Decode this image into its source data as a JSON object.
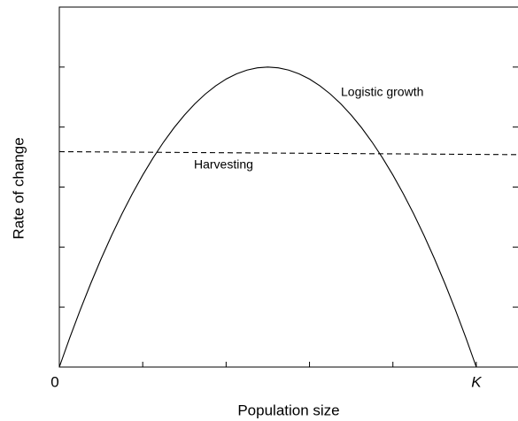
{
  "chart_data": {
    "type": "line",
    "xlabel": "Population size",
    "ylabel": "Rate of change",
    "xlim": [
      0,
      1.1
    ],
    "ylim": [
      0,
      6
    ],
    "xticks": [
      {
        "value": 0,
        "label": "0"
      },
      {
        "value": 0.2,
        "label": null
      },
      {
        "value": 0.4,
        "label": null
      },
      {
        "value": 0.6,
        "label": null
      },
      {
        "value": 0.8,
        "label": null
      },
      {
        "value": 1,
        "label": "K"
      }
    ],
    "yticks": [
      {
        "value": 1,
        "label": null
      },
      {
        "value": 2,
        "label": null
      },
      {
        "value": 3,
        "label": null
      },
      {
        "value": 4,
        "label": null
      },
      {
        "value": 5,
        "label": null
      }
    ],
    "series": [
      {
        "name": "Logistic growth",
        "color": "#000000",
        "dash": false,
        "x": [
          0,
          0.025,
          0.05,
          0.075,
          0.1,
          0.125,
          0.15,
          0.175,
          0.2,
          0.225,
          0.25,
          0.275,
          0.3,
          0.325,
          0.35,
          0.375,
          0.4,
          0.425,
          0.45,
          0.475,
          0.5,
          0.525,
          0.55,
          0.575,
          0.6,
          0.625,
          0.65,
          0.675,
          0.7,
          0.725,
          0.75,
          0.775,
          0.8,
          0.825,
          0.85,
          0.875,
          0.9,
          0.925,
          0.95,
          0.975,
          1
        ],
        "values": [
          0,
          0.4875,
          0.95,
          1.3875,
          1.8,
          2.1875,
          2.55,
          2.8875,
          3.2,
          3.4875,
          3.75,
          3.9875,
          4.2,
          4.3875,
          4.55,
          4.6875,
          4.8,
          4.8875,
          4.95,
          4.9875,
          5,
          4.9875,
          4.95,
          4.8875,
          4.8,
          4.6875,
          4.55,
          4.3875,
          4.2,
          3.9875,
          3.75,
          3.4875,
          3.2,
          2.8875,
          2.55,
          2.1875,
          1.8,
          1.3875,
          0.95,
          0.4875,
          0
        ]
      },
      {
        "name": "Harvesting",
        "color": "#000000",
        "dash": true,
        "x": [
          0,
          1.1
        ],
        "values": [
          3.59,
          3.54
        ]
      }
    ]
  }
}
